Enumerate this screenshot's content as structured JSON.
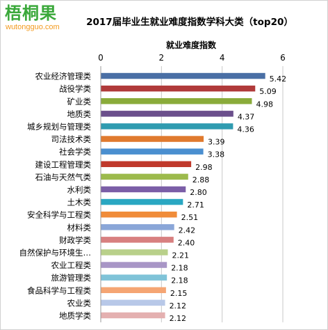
{
  "logo": {
    "main": "梧桐果",
    "sub": "wutongguo.com"
  },
  "colors": {
    "logo_main": "#3aa83a",
    "logo_sub": "#f39a1e"
  },
  "chart_data": {
    "type": "bar",
    "orientation": "horizontal",
    "title": "2017届毕业生就业难度指数学科大类（top20）",
    "xlabel": "就业难度指数",
    "ylabel": "",
    "xlim": [
      0,
      6
    ],
    "xticks": [
      0,
      2,
      4,
      6
    ],
    "grid": true,
    "legend": "none",
    "categories": [
      "农业经济管理类",
      "战役学类",
      "矿业类",
      "地质类",
      "城乡规划与管理类",
      "司法技术类",
      "社会学类",
      "建设工程管理类",
      "石油与天然气类",
      "水利类",
      "土木类",
      "安全科学与工程类",
      "材料类",
      "财政学类",
      "自然保护与环境生…",
      "农业工程类",
      "旅游管理类",
      "食品科学与工程类",
      "农业类",
      "地质学类"
    ],
    "values": [
      5.42,
      5.09,
      4.98,
      4.37,
      4.36,
      3.39,
      3.38,
      2.98,
      2.88,
      2.8,
      2.71,
      2.51,
      2.42,
      2.4,
      2.21,
      2.18,
      2.18,
      2.15,
      2.12,
      2.12
    ],
    "value_labels": [
      "5.42",
      "5.09",
      "4.98",
      "4.37",
      "4.36",
      "3.39",
      "3.38",
      "2.98",
      "2.88",
      "2.80",
      "2.71",
      "2.51",
      "2.42",
      "2.40",
      "2.21",
      "2.18",
      "2.18",
      "2.15",
      "2.12",
      "2.12"
    ],
    "colors": [
      "#4a6fa5",
      "#b03a3a",
      "#8aab3a",
      "#6b4f8c",
      "#2f9bb0",
      "#e07a2e",
      "#4a8fd0",
      "#c0392b",
      "#9cba4c",
      "#7b5ea7",
      "#2aa7c2",
      "#f08c3a",
      "#8aa6d8",
      "#d88080",
      "#b9d08a",
      "#a896c6",
      "#7fc3d8",
      "#f5a573",
      "#b8c8e8",
      "#e4b0b0"
    ]
  }
}
